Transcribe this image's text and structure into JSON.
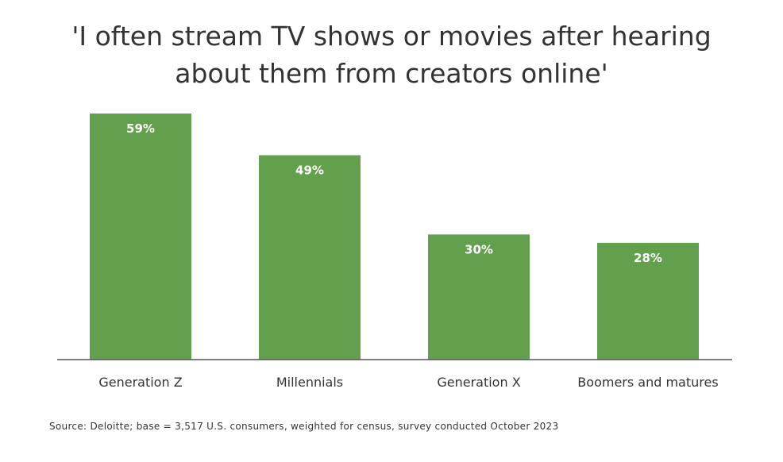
{
  "chart_data": {
    "type": "bar",
    "title_lines": [
      "'I often stream TV shows or movies after hearing",
      "about them from creators online'"
    ],
    "categories": [
      "Generation Z",
      "Millennials",
      "Generation X",
      "Boomers and matures"
    ],
    "values": [
      59,
      49,
      30,
      28
    ],
    "data_labels": [
      "59%",
      "49%",
      "30%",
      "28%"
    ],
    "bar_color": "#62a04d",
    "label_color": "#ffffff",
    "baseline_color": "#555555",
    "ylim": [
      0,
      59
    ],
    "grid": false,
    "legend": "none",
    "source": "Source: Deloitte; base = 3,517 U.S. consumers, weighted for census, survey conducted October 2023"
  }
}
